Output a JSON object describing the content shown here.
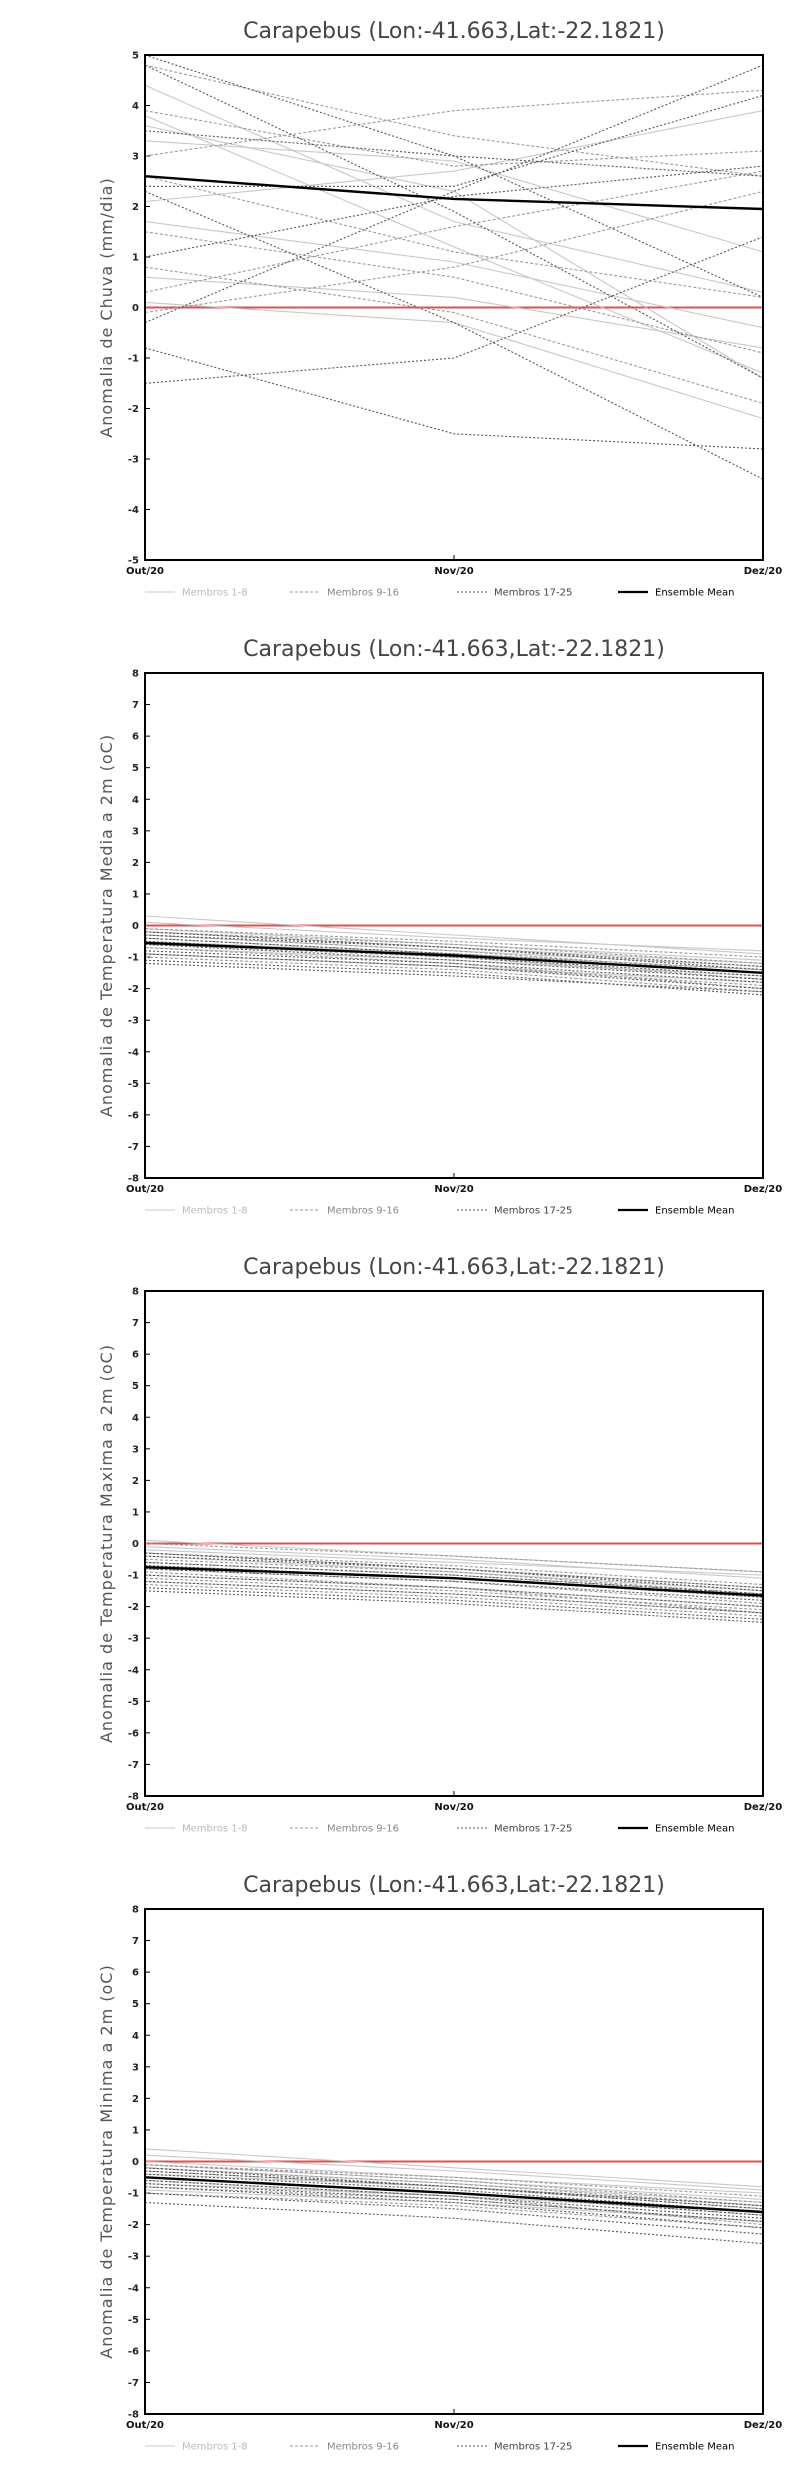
{
  "chart_data": [
    {
      "type": "line",
      "title": "Carapebus (Lon:-41.663,Lat:-22.1821)",
      "ylabel": "Anomalia de Chuva (mm/dia)",
      "xlabel": "",
      "categories": [
        "Out/20",
        "Nov/20",
        "Dez/20"
      ],
      "ylim": [
        -5,
        5
      ],
      "yticks": [
        -5,
        -4,
        -3,
        -2,
        -1,
        0,
        1,
        2,
        3,
        4,
        5
      ],
      "reference_line": 0,
      "series": [
        {
          "name": "Membros 1-8",
          "style": "light",
          "values": [
            [
              3.8,
              1.2,
              -1.3
            ],
            [
              1.7,
              0.9,
              -0.4
            ],
            [
              0.6,
              0.2,
              -0.8
            ],
            [
              0.1,
              -0.3,
              -2.2
            ],
            [
              3.3,
              2.9,
              1.1
            ],
            [
              4.4,
              1.7,
              0.3
            ],
            [
              2.1,
              2.7,
              3.9
            ],
            [
              3.6,
              2.3,
              -1.4
            ]
          ]
        },
        {
          "name": "Membros 9-16",
          "style": "medium",
          "values": [
            [
              -0.1,
              0.8,
              2.3
            ],
            [
              3.9,
              2.8,
              3.1
            ],
            [
              1.5,
              0.6,
              -0.9
            ],
            [
              0.8,
              -0.1,
              -1.9
            ],
            [
              4.8,
              3.4,
              2.6
            ],
            [
              2.6,
              1.1,
              0.2
            ],
            [
              3.0,
              3.9,
              4.3
            ],
            [
              0.3,
              1.6,
              2.7
            ]
          ]
        },
        {
          "name": "Membros 17-25",
          "style": "dark",
          "values": [
            [
              5.0,
              3.0,
              0.2
            ],
            [
              -0.3,
              2.3,
              4.8
            ],
            [
              2.3,
              -0.3,
              -3.4
            ],
            [
              1.0,
              2.2,
              2.8
            ],
            [
              3.5,
              3.0,
              2.6
            ],
            [
              -0.8,
              -2.5,
              -2.8
            ],
            [
              4.8,
              1.9,
              -1.4
            ],
            [
              -1.5,
              -1.0,
              1.4
            ],
            [
              2.4,
              2.4,
              4.2
            ]
          ]
        },
        {
          "name": "Ensemble Mean",
          "style": "mean",
          "values": [
            2.6,
            2.15,
            1.95
          ]
        }
      ]
    },
    {
      "type": "line",
      "title": "Carapebus (Lon:-41.663,Lat:-22.1821)",
      "ylabel": "Anomalia de Temperatura Media a 2m (oC)",
      "xlabel": "",
      "categories": [
        "Out/20",
        "Nov/20",
        "Dez/20"
      ],
      "ylim": [
        -8,
        8
      ],
      "yticks": [
        -8,
        -7,
        -6,
        -5,
        -4,
        -3,
        -2,
        -1,
        0,
        1,
        2,
        3,
        4,
        5,
        6,
        7,
        8
      ],
      "reference_line": 0,
      "series": [
        {
          "name": "Membros 1-8",
          "style": "light",
          "values": [
            [
              0.3,
              -0.3,
              -0.9
            ],
            [
              -0.2,
              -0.7,
              -1.2
            ],
            [
              -0.5,
              -0.9,
              -1.4
            ],
            [
              -0.1,
              -0.6,
              -1.1
            ],
            [
              -0.7,
              -1.1,
              -1.6
            ],
            [
              -0.3,
              -0.8,
              -1.3
            ],
            [
              0.1,
              -0.4,
              -0.8
            ],
            [
              -0.9,
              -1.3,
              -1.8
            ]
          ]
        },
        {
          "name": "Membros 9-16",
          "style": "medium",
          "values": [
            [
              -0.3,
              -0.8,
              -1.5
            ],
            [
              -0.6,
              -1.0,
              -1.7
            ],
            [
              -0.1,
              -0.5,
              -1.0
            ],
            [
              -0.9,
              -1.3,
              -1.9
            ],
            [
              -0.4,
              -0.9,
              -1.4
            ],
            [
              -0.7,
              -1.2,
              -2.0
            ],
            [
              -0.2,
              -0.6,
              -1.2
            ],
            [
              -1.0,
              -1.4,
              -2.1
            ]
          ]
        },
        {
          "name": "Membros 17-25",
          "style": "dark",
          "values": [
            [
              -0.5,
              -1.0,
              -1.6
            ],
            [
              -0.8,
              -1.2,
              -1.8
            ],
            [
              -0.3,
              -0.7,
              -1.3
            ],
            [
              -1.1,
              -1.5,
              -2.2
            ],
            [
              -0.6,
              -1.1,
              -1.7
            ],
            [
              -0.2,
              -0.7,
              -1.4
            ],
            [
              -0.9,
              -1.3,
              -2.0
            ],
            [
              -1.2,
              -1.6,
              -2.1
            ],
            [
              -0.4,
              -0.9,
              -1.5
            ]
          ]
        },
        {
          "name": "Ensemble Mean",
          "style": "mean",
          "values": [
            -0.55,
            -0.95,
            -1.5
          ]
        }
      ]
    },
    {
      "type": "line",
      "title": "Carapebus (Lon:-41.663,Lat:-22.1821)",
      "ylabel": "Anomalia de Temperatura Maxima a 2m (oC)",
      "xlabel": "",
      "categories": [
        "Out/20",
        "Nov/20",
        "Dez/20"
      ],
      "ylim": [
        -8,
        8
      ],
      "yticks": [
        -8,
        -7,
        -6,
        -5,
        -4,
        -3,
        -2,
        -1,
        0,
        1,
        2,
        3,
        4,
        5,
        6,
        7,
        8
      ],
      "reference_line": 0,
      "series": [
        {
          "name": "Membros 1-8",
          "style": "light",
          "values": [
            [
              0.1,
              -0.4,
              -0.9
            ],
            [
              -0.3,
              -0.8,
              -1.4
            ],
            [
              -0.7,
              -1.1,
              -1.7
            ],
            [
              -0.1,
              -0.5,
              -1.1
            ],
            [
              -1.0,
              -1.4,
              -2.0
            ],
            [
              -0.4,
              -0.9,
              -1.5
            ],
            [
              -0.2,
              -0.6,
              -1.0
            ],
            [
              -1.2,
              -1.6,
              -2.2
            ]
          ]
        },
        {
          "name": "Membros 9-16",
          "style": "medium",
          "values": [
            [
              -0.5,
              -0.9,
              -1.6
            ],
            [
              -0.8,
              -1.2,
              -1.9
            ],
            [
              0.0,
              -0.4,
              -0.9
            ],
            [
              -1.1,
              -1.5,
              -2.1
            ],
            [
              -0.6,
              -1.0,
              -1.6
            ],
            [
              -0.9,
              -1.4,
              -2.2
            ],
            [
              -0.3,
              -0.7,
              -1.3
            ],
            [
              -1.3,
              -1.7,
              -2.3
            ]
          ]
        },
        {
          "name": "Membros 17-25",
          "style": "dark",
          "values": [
            [
              -0.7,
              -1.1,
              -1.7
            ],
            [
              -1.0,
              -1.4,
              -2.0
            ],
            [
              -0.4,
              -0.8,
              -1.4
            ],
            [
              -1.4,
              -1.8,
              -2.4
            ],
            [
              -0.8,
              -1.2,
              -1.8
            ],
            [
              -0.3,
              -0.8,
              -1.5
            ],
            [
              -1.2,
              -1.6,
              -2.2
            ],
            [
              -1.5,
              -1.9,
              -2.5
            ],
            [
              -0.6,
              -1.0,
              -1.6
            ]
          ]
        },
        {
          "name": "Ensemble Mean",
          "style": "mean",
          "values": [
            -0.75,
            -1.1,
            -1.65
          ]
        }
      ]
    },
    {
      "type": "line",
      "title": "Carapebus (Lon:-41.663,Lat:-22.1821)",
      "ylabel": "Anomalia de Temperatura Minima a 2m (oC)",
      "xlabel": "",
      "categories": [
        "Out/20",
        "Nov/20",
        "Dez/20"
      ],
      "ylim": [
        -8,
        8
      ],
      "yticks": [
        -8,
        -7,
        -6,
        -5,
        -4,
        -3,
        -2,
        -1,
        0,
        1,
        2,
        3,
        4,
        5,
        6,
        7,
        8
      ],
      "reference_line": 0,
      "series": [
        {
          "name": "Membros 1-8",
          "style": "light",
          "values": [
            [
              0.4,
              -0.2,
              -0.8
            ],
            [
              -0.1,
              -0.6,
              -1.2
            ],
            [
              -0.4,
              -0.8,
              -1.4
            ],
            [
              0.0,
              -0.5,
              -1.0
            ],
            [
              -0.7,
              -1.1,
              -1.6
            ],
            [
              -0.2,
              -0.7,
              -1.3
            ],
            [
              0.2,
              -0.3,
              -0.9
            ],
            [
              -0.9,
              -1.3,
              -1.9
            ]
          ]
        },
        {
          "name": "Membros 9-16",
          "style": "medium",
          "values": [
            [
              -0.2,
              -0.7,
              -1.4
            ],
            [
              -0.5,
              -1.0,
              -1.7
            ],
            [
              -0.1,
              -0.5,
              -1.1
            ],
            [
              -0.8,
              -1.2,
              -1.9
            ],
            [
              -0.3,
              -0.8,
              -1.5
            ],
            [
              -0.6,
              -1.1,
              -2.0
            ],
            [
              -0.1,
              -0.6,
              -1.3
            ],
            [
              -1.0,
              -1.4,
              -2.1
            ]
          ]
        },
        {
          "name": "Membros 17-25",
          "style": "dark",
          "values": [
            [
              -0.4,
              -0.9,
              -1.6
            ],
            [
              -0.7,
              -1.2,
              -1.9
            ],
            [
              -0.3,
              -0.8,
              -1.4
            ],
            [
              -1.0,
              -1.5,
              -2.3
            ],
            [
              -0.5,
              -1.0,
              -1.7
            ],
            [
              -0.2,
              -0.8,
              -1.5
            ],
            [
              -0.8,
              -1.3,
              -2.1
            ],
            [
              -1.3,
              -1.8,
              -2.6
            ],
            [
              -0.6,
              -1.1,
              -1.8
            ]
          ]
        },
        {
          "name": "Ensemble Mean",
          "style": "mean",
          "values": [
            -0.5,
            -1.0,
            -1.6
          ]
        }
      ]
    }
  ],
  "legend": [
    {
      "label": "Membros 1-8",
      "style": "light"
    },
    {
      "label": "Membros 9-16",
      "style": "medium"
    },
    {
      "label": "Membros 17-25",
      "style": "dark"
    },
    {
      "label": "Ensemble Mean",
      "style": "mean"
    }
  ],
  "colors": {
    "light": "#c8c8c8",
    "medium": "#9a9a9a",
    "dark": "#555555",
    "mean": "#000000",
    "zero_line": "#e05050",
    "frame": "#000000"
  }
}
